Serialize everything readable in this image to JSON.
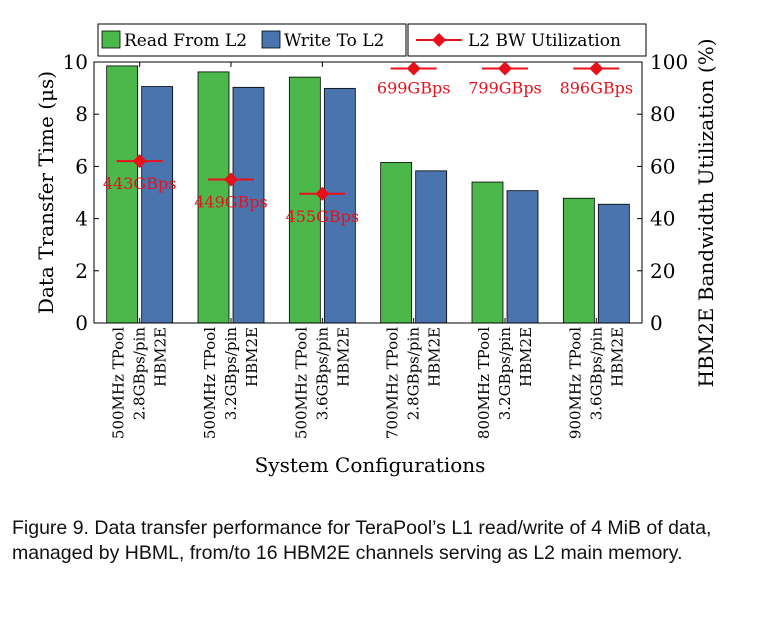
{
  "chart_data": {
    "type": "bar",
    "xlabel": "System Configurations",
    "ylabel_left": "Data Transfer Time (μs)",
    "ylabel_right": "HBM2E Bandwidth Utilization (%)",
    "ylim_left": [
      0,
      10
    ],
    "ylim_right": [
      0,
      100
    ],
    "yticks_left": [
      "0",
      "2",
      "4",
      "6",
      "8",
      "10"
    ],
    "yticks_right": [
      "0",
      "20",
      "40",
      "60",
      "80",
      "100"
    ],
    "categories": [
      [
        "500MHz TPool",
        "2.8GBps/pin",
        "HBM2E"
      ],
      [
        "500MHz TPool",
        "3.2GBps/pin",
        "HBM2E"
      ],
      [
        "500MHz TPool",
        "3.6GBps/pin",
        "HBM2E"
      ],
      [
        "700MHz TPool",
        "2.8GBps/pin",
        "HBM2E"
      ],
      [
        "800MHz TPool",
        "3.2GBps/pin",
        "HBM2E"
      ],
      [
        "900MHz TPool",
        "3.6GBps/pin",
        "HBM2E"
      ]
    ],
    "series": [
      {
        "name": "Read From L2",
        "color": "#4cb84c",
        "values": [
          9.85,
          9.62,
          9.42,
          6.15,
          5.4,
          4.78
        ]
      },
      {
        "name": "Write To L2",
        "color": "#4a74ad",
        "values": [
          9.06,
          9.03,
          8.99,
          5.83,
          5.07,
          4.55
        ]
      }
    ],
    "line": {
      "name": "L2 BW Utilization",
      "color": "#e8101a",
      "values": [
        62,
        55,
        49.5,
        97.5,
        97.5,
        97.5
      ],
      "labels": [
        "443GBps",
        "449GBps",
        "455GBps",
        "699GBps",
        "799GBps",
        "896GBps"
      ]
    }
  },
  "caption": "Figure 9. Data transfer performance for TeraPool’s L1 read/write of 4 MiB of data, managed by HBML, from/to 16 HBM2E channels serving as L2 main memory."
}
